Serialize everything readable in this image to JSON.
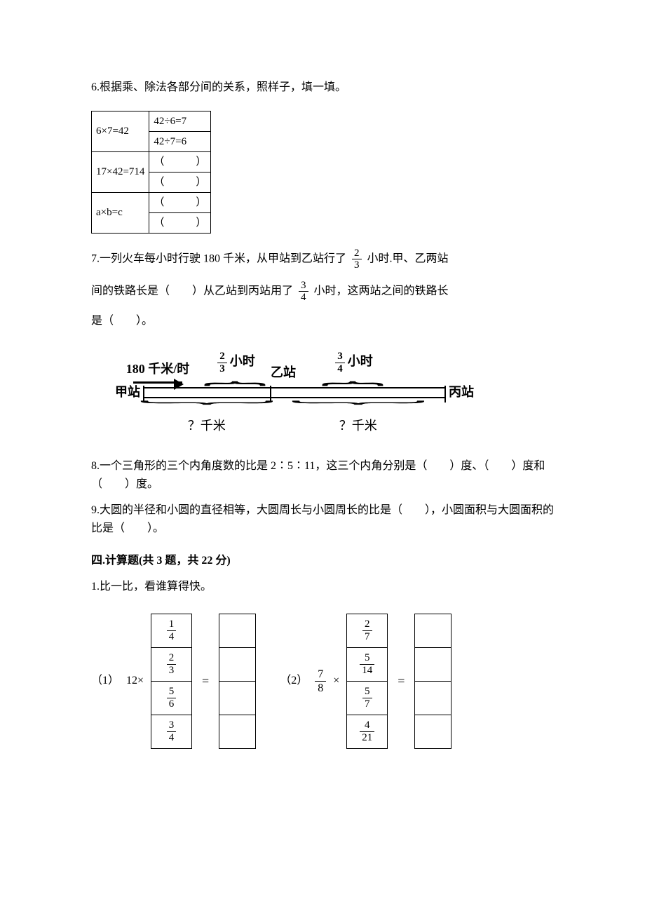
{
  "q6": {
    "text": "6.根据乘、除法各部分间的关系，照样子，填一填。",
    "table": {
      "r1c1": "6×7=42",
      "r1c2": "42÷6=7",
      "r2c2": "42÷7=6",
      "r3c1": "17×42=714",
      "r3c2": "（　　　）",
      "r4c2": "（　　　）",
      "r5c1": "a×b=c",
      "r5c2": "（　　　）",
      "r6c2": "（　　　）"
    }
  },
  "q7": {
    "line1_a": "7.一列火车每小时行驶 180 千米，从甲站到乙站行了",
    "line1_b": "小时.甲、乙两站",
    "frac1": {
      "num": "2",
      "den": "3"
    },
    "line2_a": "间的铁路长是（　　）从乙站到丙站用了",
    "frac2": {
      "num": "3",
      "den": "4"
    },
    "line2_b": "小时，这两站之间的铁路长",
    "line3": "是（　　）。",
    "diagram": {
      "speed": "180 千米/时",
      "t1": {
        "num": "2",
        "den": "3",
        "unit": "小时"
      },
      "t2": {
        "num": "3",
        "den": "4",
        "unit": "小时"
      },
      "mid_station": "乙站",
      "left_station": "甲站",
      "right_station": "丙站",
      "q1": "？千米",
      "q2": "？千米",
      "seg1_pct": 42,
      "seg2_pct": 58
    }
  },
  "q8": {
    "text": "8.一个三角形的三个内角度数的比是 2∶5∶11，这三个内角分别是（　　）度、（　　）度和（　　）度。"
  },
  "q9": {
    "text": "9.大圆的半径和小圆的直径相等，大圆周长与小圆周长的比是（　　），小圆面积与大圆面积的比是（　　）。"
  },
  "section4": {
    "title": "四.计算题(共 3 题，共 22 分)",
    "q1": "1.比一比，看谁算得快。",
    "calc1": {
      "label": "（1）",
      "mult": "12×",
      "rows": [
        {
          "num": "1",
          "den": "4"
        },
        {
          "num": "2",
          "den": "3"
        },
        {
          "num": "5",
          "den": "6"
        },
        {
          "num": "3",
          "den": "4"
        }
      ]
    },
    "calc2": {
      "label": "（2）",
      "mult_frac": {
        "num": "7",
        "den": "8"
      },
      "mult_sign": "×",
      "rows": [
        {
          "num": "2",
          "den": "7"
        },
        {
          "num": "5",
          "den": "14"
        },
        {
          "num": "5",
          "den": "7"
        },
        {
          "num": "4",
          "den": "21"
        }
      ]
    },
    "eq": "="
  }
}
